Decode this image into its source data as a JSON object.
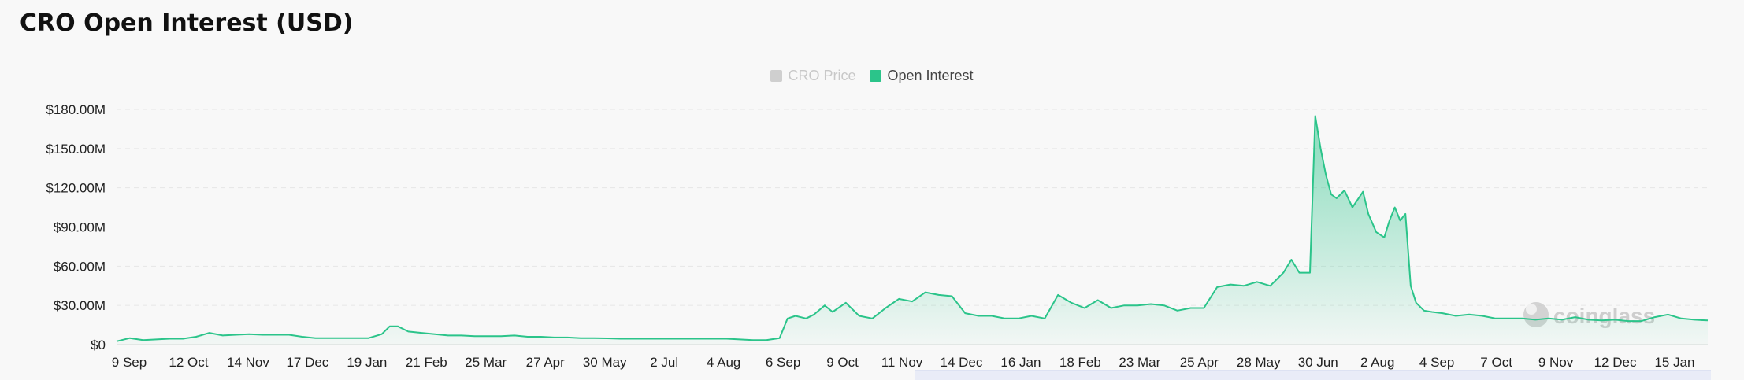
{
  "page": {
    "title": "CRO Open Interest (USD)"
  },
  "legend": [
    {
      "label": "CRO Price",
      "active": false,
      "color": "#cfcfcf"
    },
    {
      "label": "Open Interest",
      "active": true,
      "color": "#2bc48a"
    }
  ],
  "watermark": "coinglass",
  "chart_data": {
    "type": "area",
    "title": "CRO Open Interest (USD)",
    "ylim": [
      0,
      180
    ],
    "y_unit": "M USD",
    "y_ticks": [
      "$0",
      "$30.00M",
      "$60.00M",
      "$90.00M",
      "$120.00M",
      "$150.00M",
      "$180.00M"
    ],
    "y_tick_values": [
      0,
      30,
      60,
      90,
      120,
      150,
      180
    ],
    "x_tick_labels": [
      "9 Sep",
      "12 Oct",
      "14 Nov",
      "17 Dec",
      "19 Jan",
      "21 Feb",
      "25 Mar",
      "27 Apr",
      "30 May",
      "2 Jul",
      "4 Aug",
      "6 Sep",
      "9 Oct",
      "11 Nov",
      "14 Dec",
      "16 Jan",
      "18 Feb",
      "23 Mar",
      "25 Apr",
      "28 May",
      "30 Jun",
      "2 Aug",
      "4 Sep",
      "7 Oct",
      "9 Nov",
      "12 Dec",
      "15 Jan"
    ],
    "grid": "horizontal dashed",
    "legend_position": "top-center",
    "series": [
      {
        "name": "Open Interest",
        "color": "#2bc48a",
        "x_index_max": 60,
        "points": [
          [
            0,
            2.5
          ],
          [
            0.5,
            5
          ],
          [
            1,
            3.5
          ],
          [
            1.5,
            4
          ],
          [
            2,
            4.5
          ],
          [
            2.5,
            4.5
          ],
          [
            3,
            6
          ],
          [
            3.5,
            9
          ],
          [
            4,
            7
          ],
          [
            4.5,
            7.5
          ],
          [
            5,
            8
          ],
          [
            5.5,
            7.5
          ],
          [
            6,
            7.5
          ],
          [
            6.5,
            7.5
          ],
          [
            7,
            6
          ],
          [
            7.5,
            5
          ],
          [
            8,
            5
          ],
          [
            8.5,
            5
          ],
          [
            9,
            5
          ],
          [
            9.5,
            5
          ],
          [
            10,
            8
          ],
          [
            10.3,
            14
          ],
          [
            10.6,
            14
          ],
          [
            11,
            10
          ],
          [
            11.5,
            9
          ],
          [
            12,
            8
          ],
          [
            12.5,
            7
          ],
          [
            13,
            7
          ],
          [
            13.5,
            6.5
          ],
          [
            14,
            6.5
          ],
          [
            14.5,
            6.5
          ],
          [
            15,
            7
          ],
          [
            15.5,
            6
          ],
          [
            16,
            6
          ],
          [
            16.5,
            5.5
          ],
          [
            17,
            5.5
          ],
          [
            17.5,
            5
          ],
          [
            18,
            5
          ],
          [
            18.5,
            4.8
          ],
          [
            19,
            4.5
          ],
          [
            20,
            4.5
          ],
          [
            21,
            4.5
          ],
          [
            22,
            4.5
          ],
          [
            23,
            4.5
          ],
          [
            24,
            3.5
          ],
          [
            24.5,
            3.5
          ],
          [
            25,
            5
          ],
          [
            25.3,
            20
          ],
          [
            25.6,
            22
          ],
          [
            26,
            20
          ],
          [
            26.3,
            23
          ],
          [
            26.7,
            30
          ],
          [
            27,
            25
          ],
          [
            27.5,
            32
          ],
          [
            28,
            22
          ],
          [
            28.5,
            20
          ],
          [
            29,
            28
          ],
          [
            29.5,
            35
          ],
          [
            30,
            33
          ],
          [
            30.5,
            40
          ],
          [
            31,
            38
          ],
          [
            31.5,
            37
          ],
          [
            32,
            24
          ],
          [
            32.5,
            22
          ],
          [
            33,
            22
          ],
          [
            33.5,
            20
          ],
          [
            34,
            20
          ],
          [
            34.5,
            22
          ],
          [
            35,
            20
          ],
          [
            35.5,
            38
          ],
          [
            36,
            32
          ],
          [
            36.5,
            28
          ],
          [
            37,
            34
          ],
          [
            37.5,
            28
          ],
          [
            38,
            30
          ],
          [
            38.5,
            30
          ],
          [
            39,
            31
          ],
          [
            39.5,
            30
          ],
          [
            40,
            26
          ],
          [
            40.5,
            28
          ],
          [
            41,
            28
          ],
          [
            41.5,
            44
          ],
          [
            42,
            46
          ],
          [
            42.5,
            45
          ],
          [
            43,
            48
          ],
          [
            43.5,
            45
          ],
          [
            44,
            55
          ],
          [
            44.3,
            65
          ],
          [
            44.6,
            55
          ],
          [
            45,
            55
          ],
          [
            45.2,
            175
          ],
          [
            45.4,
            150
          ],
          [
            45.6,
            130
          ],
          [
            45.8,
            115
          ],
          [
            46,
            112
          ],
          [
            46.3,
            118
          ],
          [
            46.6,
            105
          ],
          [
            47,
            117
          ],
          [
            47.2,
            100
          ],
          [
            47.5,
            86
          ],
          [
            47.8,
            82
          ],
          [
            48,
            95
          ],
          [
            48.2,
            105
          ],
          [
            48.4,
            95
          ],
          [
            48.6,
            100
          ],
          [
            48.8,
            45
          ],
          [
            49,
            32
          ],
          [
            49.3,
            26
          ],
          [
            49.6,
            25
          ],
          [
            50,
            24
          ],
          [
            50.5,
            22
          ],
          [
            51,
            23
          ],
          [
            51.5,
            22
          ],
          [
            52,
            20
          ],
          [
            52.5,
            20
          ],
          [
            53,
            20
          ],
          [
            53.5,
            19
          ],
          [
            54,
            20
          ],
          [
            54.5,
            19
          ],
          [
            55,
            21
          ],
          [
            55.5,
            19
          ],
          [
            56,
            18.5
          ],
          [
            56.5,
            19
          ],
          [
            57,
            18
          ],
          [
            57.5,
            18
          ],
          [
            58,
            21
          ],
          [
            58.5,
            23
          ],
          [
            59,
            20
          ],
          [
            59.5,
            19
          ],
          [
            60,
            18.5
          ]
        ]
      }
    ]
  }
}
